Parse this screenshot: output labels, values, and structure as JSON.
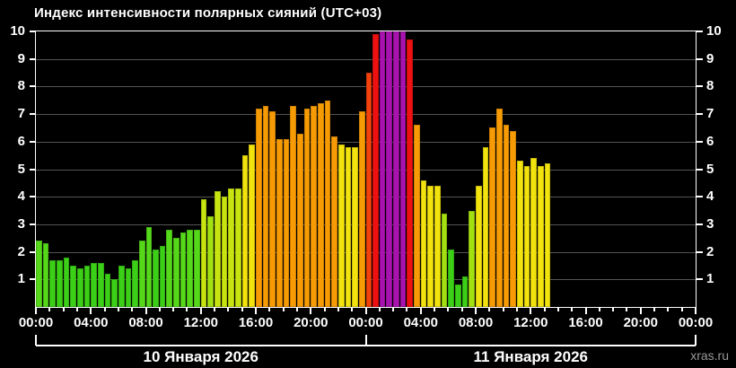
{
  "chart": {
    "title": "Индекс интенсивности полярных сияний (UTC+03)",
    "watermark": "xras.ru"
  },
  "chart_data": {
    "type": "bar",
    "title": "Индекс интенсивности полярных сияний (UTC+03)",
    "xlabel": "",
    "ylabel": "",
    "ylim": [
      0,
      10
    ],
    "y_ticks": [
      1,
      2,
      3,
      4,
      5,
      6,
      7,
      8,
      9,
      10
    ],
    "grid": "horizontal",
    "interval_minutes": 30,
    "x_tick_labels": [
      "00:00",
      "04:00",
      "08:00",
      "12:00",
      "16:00",
      "20:00",
      "00:00",
      "04:00",
      "08:00",
      "12:00",
      "16:00",
      "20:00",
      "00:00"
    ],
    "days": [
      {
        "date_label": "10 Января 2026",
        "times": [
          "00:00",
          "00:30",
          "01:00",
          "01:30",
          "02:00",
          "02:30",
          "03:00",
          "03:30",
          "04:00",
          "04:30",
          "05:00",
          "05:30",
          "06:00",
          "06:30",
          "07:00",
          "07:30",
          "08:00",
          "08:30",
          "09:00",
          "09:30",
          "10:00",
          "10:30",
          "11:00",
          "11:30",
          "12:00",
          "12:30",
          "13:00",
          "13:30",
          "14:00",
          "14:30",
          "15:00",
          "15:30",
          "16:00",
          "16:30",
          "17:00",
          "17:30",
          "18:00",
          "18:30",
          "19:00",
          "19:30",
          "20:00",
          "20:30",
          "21:00",
          "21:30",
          "22:00",
          "22:30",
          "23:00",
          "23:30"
        ],
        "values": [
          2.4,
          2.3,
          1.7,
          1.7,
          1.8,
          1.5,
          1.4,
          1.5,
          1.6,
          1.6,
          1.2,
          1.0,
          1.5,
          1.4,
          1.7,
          2.4,
          2.9,
          2.1,
          2.2,
          2.8,
          2.5,
          2.7,
          2.8,
          2.8,
          3.9,
          3.3,
          4.2,
          4.0,
          4.3,
          4.3,
          5.5,
          5.9,
          7.2,
          7.3,
          7.1,
          6.1,
          6.1,
          7.3,
          6.3,
          7.2,
          7.3,
          7.4,
          7.5,
          6.2,
          5.9,
          5.8,
          5.8,
          7.1
        ]
      },
      {
        "date_label": "11 Января 2026",
        "times": [
          "00:00",
          "00:30",
          "01:00",
          "01:30",
          "02:00",
          "02:30",
          "03:00",
          "03:30",
          "04:00",
          "04:30",
          "05:00",
          "05:30",
          "06:00",
          "06:30",
          "07:00",
          "07:30",
          "08:00",
          "08:30",
          "09:00",
          "09:30",
          "10:00",
          "10:30",
          "11:00",
          "11:30",
          "12:00",
          "12:30",
          "13:00"
        ],
        "values": [
          8.5,
          9.9,
          10,
          10,
          10,
          10,
          9.7,
          6.6,
          4.6,
          4.4,
          4.4,
          3.4,
          2.1,
          0.8,
          1.1,
          3.5,
          4.4,
          5.8,
          6.5,
          7.2,
          6.6,
          6.4,
          5.3,
          5.1,
          5.4,
          5.1,
          5.2
        ]
      }
    ],
    "color_scale": [
      {
        "max": 2.25,
        "color": "#3ccf17"
      },
      {
        "max": 3.0,
        "color": "#56d81a"
      },
      {
        "max": 3.7,
        "color": "#a3e011"
      },
      {
        "max": 4.35,
        "color": "#c8e410"
      },
      {
        "max": 6.05,
        "color": "#f2e20e"
      },
      {
        "max": 8.0,
        "color": "#f79b05"
      },
      {
        "max": 9.0,
        "color": "#f4420a"
      },
      {
        "max": 9.95,
        "color": "#ee1111"
      },
      {
        "max": 10.01,
        "color": "#a812ae"
      }
    ],
    "axis_color": "#ffffff",
    "grid_color": "#545454",
    "background": "#000000",
    "legend": "none"
  }
}
